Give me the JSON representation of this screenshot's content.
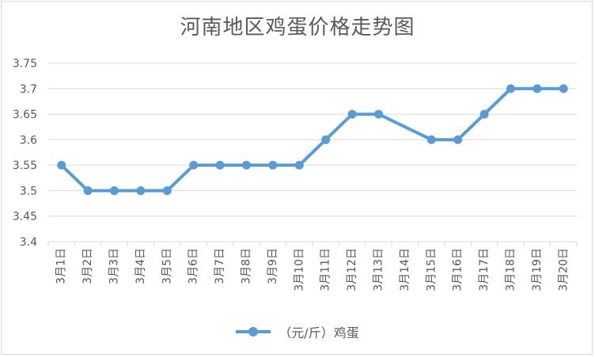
{
  "chart_data": {
    "type": "line",
    "title": "河南地区鸡蛋价格走势图",
    "xlabel": "",
    "ylabel": "",
    "categories": [
      "3月1日",
      "3月2日",
      "3月3日",
      "3月4日",
      "3月5日",
      "3月6日",
      "3月7日",
      "3月8日",
      "3月9日",
      "3月10日",
      "3月11日",
      "3月12日",
      "3月13日",
      "3月14日",
      "3月15日",
      "3月16日",
      "3月17日",
      "3月18日",
      "3月19日",
      "3月20日"
    ],
    "series": [
      {
        "name": "（元/斤）鸡蛋",
        "color": "#5b9bd5",
        "values": [
          3.55,
          3.5,
          3.5,
          3.5,
          3.5,
          3.55,
          3.55,
          3.55,
          3.55,
          3.55,
          3.6,
          3.65,
          3.65,
          null,
          3.6,
          3.6,
          3.65,
          3.7,
          3.7,
          3.7
        ]
      }
    ],
    "ylim": [
      3.4,
      3.75
    ],
    "yticks": [
      "3.4",
      "3.45",
      "3.5",
      "3.55",
      "3.6",
      "3.65",
      "3.7",
      "3.75"
    ],
    "grid": true,
    "legend": "bottom"
  }
}
